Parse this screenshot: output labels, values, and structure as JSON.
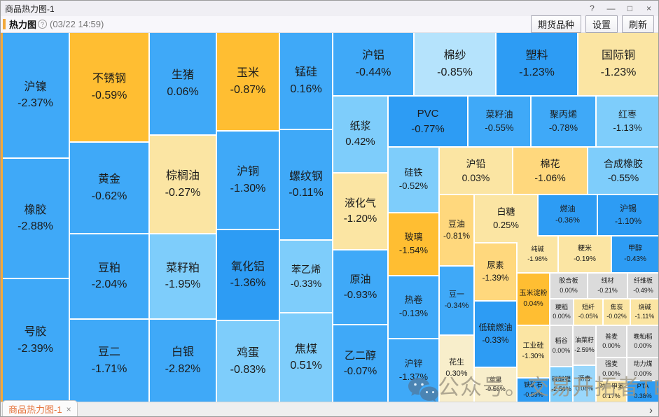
{
  "window": {
    "title": "商品热力图-1",
    "controls": {
      "help": "?",
      "minimize": "—",
      "maximize": "□",
      "close": "×"
    }
  },
  "toolbar": {
    "view_label": "热力图",
    "help_glyph": "?",
    "timestamp": "(03/22 14:59)",
    "buttons": [
      "期货品种",
      "设置",
      "刷新"
    ]
  },
  "tabbar": {
    "active_tab": "商品热力图-1",
    "close_glyph": "×",
    "scroll_right_glyph": "›"
  },
  "watermark": {
    "text": "公众号。交易开拓者TB",
    "icon": "wechat"
  },
  "colors": {
    "deep_orange": "#FFBE32",
    "mid_yellow": "#FFD87D",
    "pale_yellow": "#FBE5A3",
    "cream": "#F8EECB",
    "deep_blue": "#2D9CF4",
    "mid_blue": "#3FA9F8",
    "light_blue": "#7ECDFB",
    "pale_blue": "#B5E3FC",
    "gray": "#DBDBDB",
    "accent_orange": "#F2A93C",
    "tab_text": "#E5733B"
  },
  "chart_data": {
    "type": "heatmap",
    "title": "商品热力图",
    "timestamp": "03/22 14:59",
    "cells": [
      {
        "n": "沪镍",
        "v": "-2.37%",
        "c": "#3FA9F8",
        "r": [
          2,
          46,
          95,
          178
        ]
      },
      {
        "n": "橡胶",
        "v": "-2.88%",
        "c": "#3FA9F8",
        "r": [
          2,
          226,
          95,
          170
        ]
      },
      {
        "n": "号胶",
        "v": "-2.39%",
        "c": "#3FA9F8",
        "r": [
          2,
          398,
          95,
          175
        ]
      },
      {
        "n": "不锈钢",
        "v": "-0.59%",
        "c": "#FFBE32",
        "r": [
          99,
          46,
          112,
          155
        ]
      },
      {
        "n": "黄金",
        "v": "-0.62%",
        "c": "#3FA9F8",
        "r": [
          99,
          203,
          112,
          129
        ]
      },
      {
        "n": "豆粕",
        "v": "-2.04%",
        "c": "#3FA9F8",
        "r": [
          99,
          334,
          112,
          120
        ]
      },
      {
        "n": "豆二",
        "v": "-1.71%",
        "c": "#3FA9F8",
        "r": [
          99,
          456,
          112,
          117
        ]
      },
      {
        "n": "生猪",
        "v": "0.06%",
        "c": "#3FA9F8",
        "r": [
          213,
          46,
          94,
          145
        ]
      },
      {
        "n": "棕榈油",
        "v": "-0.27%",
        "c": "#FBE5A3",
        "r": [
          213,
          193,
          94,
          139
        ]
      },
      {
        "n": "菜籽粕",
        "v": "-1.95%",
        "c": "#7ECDFB",
        "r": [
          213,
          334,
          94,
          120
        ]
      },
      {
        "n": "白银",
        "v": "-2.82%",
        "c": "#3FA9F8",
        "r": [
          213,
          456,
          94,
          117
        ]
      },
      {
        "n": "玉米",
        "v": "-0.87%",
        "c": "#FFBE32",
        "r": [
          309,
          46,
          88,
          139
        ]
      },
      {
        "n": "沪铜",
        "v": "-1.30%",
        "c": "#3FA9F8",
        "r": [
          309,
          187,
          88,
          139
        ]
      },
      {
        "n": "氧化铝",
        "v": "-1.36%",
        "c": "#2D9CF4",
        "r": [
          309,
          328,
          88,
          128
        ]
      },
      {
        "n": "鸡蛋",
        "v": "-0.83%",
        "c": "#7ECDFB",
        "r": [
          309,
          458,
          88,
          115
        ]
      },
      {
        "n": "锰硅",
        "v": "0.16%",
        "c": "#3FA9F8",
        "r": [
          399,
          46,
          74,
          137
        ]
      },
      {
        "n": "螺纹钢",
        "v": "-0.11%",
        "c": "#3FA9F8",
        "r": [
          399,
          185,
          74,
          156
        ]
      },
      {
        "n": "苯乙烯",
        "v": "-0.33%",
        "c": "#7ECDFB",
        "r": [
          399,
          343,
          74,
          102
        ]
      },
      {
        "n": "焦煤",
        "v": "0.51%",
        "c": "#7ECDFB",
        "r": [
          399,
          447,
          74,
          126
        ]
      },
      {
        "n": "沪铝",
        "v": "-0.44%",
        "c": "#3FA9F8",
        "r": [
          475,
          46,
          114,
          89
        ]
      },
      {
        "n": "棉纱",
        "v": "-0.85%",
        "c": "#B5E3FC",
        "r": [
          591,
          46,
          115,
          89
        ]
      },
      {
        "n": "塑料",
        "v": "-1.23%",
        "c": "#2D9CF4",
        "r": [
          708,
          46,
          115,
          89
        ]
      },
      {
        "n": "国际铜",
        "v": "-1.23%",
        "c": "#FBE5A3",
        "r": [
          825,
          46,
          114,
          89
        ]
      },
      {
        "n": "纸浆",
        "v": "0.42%",
        "c": "#7ECDFB",
        "r": [
          475,
          137,
          77,
          108
        ]
      },
      {
        "n": "PVC",
        "v": "-0.77%",
        "c": "#2D9CF4",
        "r": [
          554,
          137,
          112,
          71
        ]
      },
      {
        "n": "菜籽油",
        "v": "-0.55%",
        "c": "#3FA9F8",
        "r": [
          668,
          137,
          88,
          71
        ]
      },
      {
        "n": "聚丙烯",
        "v": "-0.78%",
        "c": "#3FA9F8",
        "r": [
          758,
          137,
          91,
          71
        ]
      },
      {
        "n": "红枣",
        "v": "-1.13%",
        "c": "#7ECDFB",
        "r": [
          851,
          137,
          88,
          71
        ]
      },
      {
        "n": "液化气",
        "v": "-1.20%",
        "c": "#FBE5A3",
        "r": [
          475,
          247,
          77,
          108
        ]
      },
      {
        "n": "硅铁",
        "v": "-0.52%",
        "c": "#7ECDFB",
        "r": [
          554,
          210,
          71,
          92
        ]
      },
      {
        "n": "沪铅",
        "v": "0.03%",
        "c": "#FBE5A3",
        "r": [
          627,
          210,
          103,
          66
        ]
      },
      {
        "n": "棉花",
        "v": "-1.06%",
        "c": "#FFD87D",
        "r": [
          732,
          210,
          105,
          66
        ]
      },
      {
        "n": "合成橡胶",
        "v": "-0.55%",
        "c": "#7ECDFB",
        "r": [
          839,
          210,
          100,
          66
        ]
      },
      {
        "n": "豆油",
        "v": "-0.81%",
        "c": "#FFD87D",
        "r": [
          627,
          278,
          48,
          100
        ]
      },
      {
        "n": "白糖",
        "v": "0.25%",
        "c": "#FBE5A3",
        "r": [
          677,
          278,
          89,
          67
        ]
      },
      {
        "n": "燃油",
        "v": "-0.36%",
        "c": "#2D9CF4",
        "r": [
          768,
          278,
          83,
          57
        ]
      },
      {
        "n": "沪锡",
        "v": "-1.10%",
        "c": "#2D9CF4",
        "r": [
          853,
          278,
          86,
          57
        ]
      },
      {
        "n": "玻璃",
        "v": "-1.54%",
        "c": "#FFBE32",
        "r": [
          554,
          304,
          71,
          88
        ]
      },
      {
        "n": "原油",
        "v": "-0.93%",
        "c": "#3FA9F8",
        "r": [
          475,
          357,
          77,
          105
        ]
      },
      {
        "n": "热卷",
        "v": "-0.13%",
        "c": "#3FA9F8",
        "r": [
          554,
          394,
          71,
          88
        ]
      },
      {
        "n": "豆一",
        "v": "-0.34%",
        "c": "#3FA9F8",
        "r": [
          627,
          380,
          48,
          97
        ]
      },
      {
        "n": "尿素",
        "v": "-1.39%",
        "c": "#FFD87D",
        "r": [
          677,
          347,
          59,
          81
        ]
      },
      {
        "n": "纯碱",
        "v": "-1.98%",
        "c": "#FBE5A3",
        "r": [
          738,
          337,
          57,
          51
        ]
      },
      {
        "n": "粳米",
        "v": "-0.19%",
        "c": "#FBE5A3",
        "r": [
          797,
          337,
          74,
          51
        ]
      },
      {
        "n": "甲醇",
        "v": "-0.43%",
        "c": "#2D9CF4",
        "r": [
          873,
          337,
          66,
          51
        ]
      },
      {
        "n": "玉米淀粉",
        "v": "0.04%",
        "c": "#FFBE32",
        "r": [
          738,
          390,
          45,
          73
        ]
      },
      {
        "n": "胶合板",
        "v": "0.00%",
        "c": "#DBDBDB",
        "r": [
          785,
          390,
          52,
          35
        ]
      },
      {
        "n": "线材",
        "v": "-0.21%",
        "c": "#DBDBDB",
        "r": [
          839,
          390,
          55,
          35
        ]
      },
      {
        "n": "纤维板",
        "v": "-0.49%",
        "c": "#DBDBDB",
        "r": [
          896,
          390,
          43,
          35
        ]
      },
      {
        "n": "粳稻",
        "v": "0.00%",
        "c": "#DBDBDB",
        "r": [
          785,
          427,
          32,
          36
        ]
      },
      {
        "n": "短纤",
        "v": "-0.05%",
        "c": "#FBE5A3",
        "r": [
          819,
          427,
          40,
          36
        ]
      },
      {
        "n": "焦炭",
        "v": "-0.02%",
        "c": "#FBE5A3",
        "r": [
          861,
          427,
          37,
          36
        ]
      },
      {
        "n": "烧碱",
        "v": "-1.11%",
        "c": "#FBE5A3",
        "r": [
          900,
          427,
          39,
          36
        ]
      },
      {
        "n": "乙二醇",
        "v": "-0.07%",
        "c": "#3FA9F8",
        "r": [
          475,
          464,
          77,
          109
        ]
      },
      {
        "n": "沪锌",
        "v": "-1.37%",
        "c": "#3FA9F8",
        "r": [
          554,
          484,
          71,
          89
        ]
      },
      {
        "n": "花生",
        "v": "0.30%",
        "c": "#F8EECB",
        "r": [
          627,
          479,
          48,
          94
        ]
      },
      {
        "n": "低硫燃油",
        "v": "-0.33%",
        "c": "#2D9CF4",
        "r": [
          677,
          430,
          59,
          93
        ]
      },
      {
        "n": "苹果",
        "v": "-0.56%",
        "c": "#F8EECB",
        "r": [
          677,
          525,
          59,
          48
        ]
      },
      {
        "n": "工业硅",
        "v": "-1.30%",
        "c": "#FBE5A3",
        "r": [
          738,
          465,
          45,
          73
        ]
      },
      {
        "n": "铁矿石",
        "v": "-0.59%",
        "c": "#2D9CF4",
        "r": [
          738,
          540,
          45,
          33
        ]
      },
      {
        "n": "稻谷",
        "v": "0.00%",
        "c": "#DBDBDB",
        "r": [
          785,
          465,
          31,
          57
        ]
      },
      {
        "n": "碳酸锂",
        "v": "-2.56%",
        "c": "#7ECDFB",
        "r": [
          785,
          524,
          31,
          49
        ]
      },
      {
        "n": "油菜籽",
        "v": "-2.59%",
        "c": "#DBDBDB",
        "r": [
          818,
          465,
          31,
          55
        ]
      },
      {
        "n": "沥青",
        "v": "0.08%",
        "c": "#9AD7FB",
        "r": [
          818,
          522,
          31,
          51
        ]
      },
      {
        "n": "普麦",
        "v": "0.00%",
        "c": "#DBDBDB",
        "r": [
          851,
          465,
          42,
          44
        ]
      },
      {
        "n": "晚籼稻",
        "v": "0.00%",
        "c": "#DBDBDB",
        "r": [
          895,
          465,
          44,
          44
        ]
      },
      {
        "n": "强麦",
        "v": "0.00%",
        "c": "#DBDBDB",
        "r": [
          851,
          511,
          42,
          31
        ]
      },
      {
        "n": "动力煤",
        "v": "0.00%",
        "c": "#DBDBDB",
        "r": [
          895,
          511,
          44,
          31
        ]
      },
      {
        "n": "对二甲苯",
        "v": "0.17%",
        "c": "#FBE5A3",
        "r": [
          851,
          544,
          42,
          29
        ]
      },
      {
        "n": "PTA",
        "v": "0.38%",
        "c": "#2D9CF4",
        "r": [
          895,
          544,
          44,
          29
        ]
      }
    ]
  }
}
